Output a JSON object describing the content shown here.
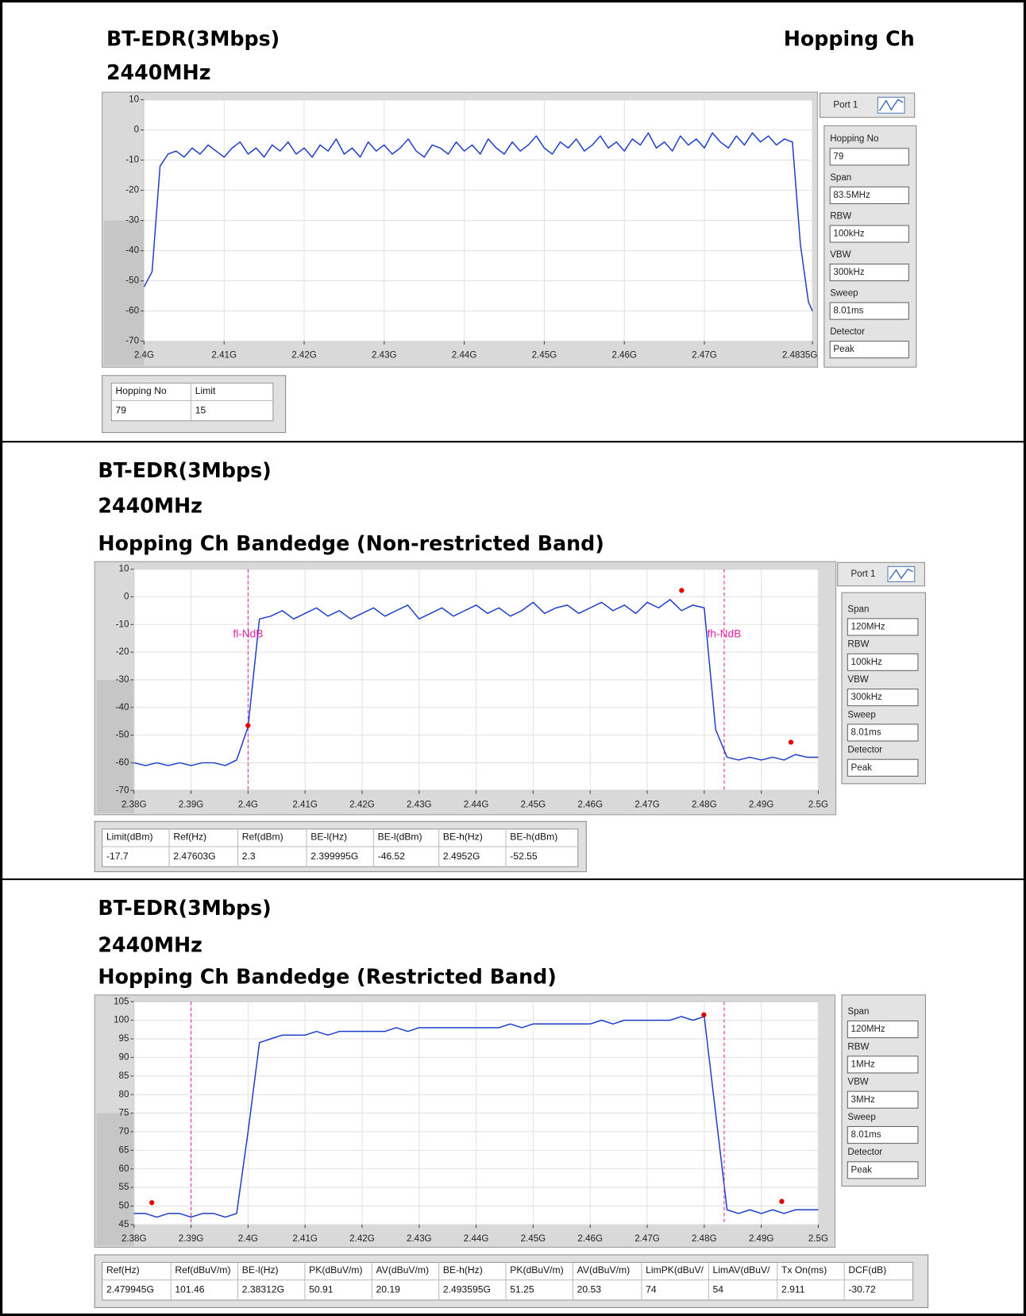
{
  "chart_data": [
    {
      "type": "line",
      "title_lines": [
        "BT-EDR(3Mbps)",
        "2440MHz",
        "Hopping Ch"
      ],
      "xlim": [
        2.4,
        2.4835
      ],
      "ylim": [
        -70,
        10
      ],
      "xticks": [
        {
          "value": 2.4,
          "label": "2.4G"
        },
        {
          "value": 2.41,
          "label": "2.41G"
        },
        {
          "value": 2.42,
          "label": "2.42G"
        },
        {
          "value": 2.43,
          "label": "2.43G"
        },
        {
          "value": 2.44,
          "label": "2.44G"
        },
        {
          "value": 2.45,
          "label": "2.45G"
        },
        {
          "value": 2.46,
          "label": "2.46G"
        },
        {
          "value": 2.47,
          "label": "2.47G"
        },
        {
          "value": 2.4835,
          "label": "2.4835G"
        }
      ],
      "yticks": [
        -70,
        -60,
        -50,
        -40,
        -30,
        -20,
        -10,
        0,
        10
      ],
      "grid": true,
      "x": [
        2.4,
        2.401,
        2.402,
        2.403,
        2.404,
        2.405,
        2.406,
        2.407,
        2.408,
        2.409,
        2.41,
        2.411,
        2.412,
        2.413,
        2.414,
        2.415,
        2.416,
        2.417,
        2.418,
        2.419,
        2.42,
        2.421,
        2.422,
        2.423,
        2.424,
        2.425,
        2.426,
        2.427,
        2.428,
        2.429,
        2.43,
        2.431,
        2.432,
        2.433,
        2.434,
        2.435,
        2.436,
        2.437,
        2.438,
        2.439,
        2.44,
        2.441,
        2.442,
        2.443,
        2.444,
        2.445,
        2.446,
        2.447,
        2.448,
        2.449,
        2.45,
        2.451,
        2.452,
        2.453,
        2.454,
        2.455,
        2.456,
        2.457,
        2.458,
        2.459,
        2.46,
        2.461,
        2.462,
        2.463,
        2.464,
        2.465,
        2.466,
        2.467,
        2.468,
        2.469,
        2.47,
        2.471,
        2.472,
        2.473,
        2.474,
        2.475,
        2.476,
        2.477,
        2.478,
        2.479,
        2.48,
        2.481,
        2.482,
        2.483,
        2.4835
      ],
      "series": [
        {
          "color": "#1a3cc8",
          "values": [
            -52,
            -47,
            -12,
            -8,
            -7,
            -9,
            -6,
            -8,
            -5,
            -7,
            -9,
            -6,
            -4,
            -8,
            -6,
            -9,
            -5,
            -7,
            -4,
            -8,
            -6,
            -9,
            -5,
            -7,
            -3,
            -8,
            -6,
            -9,
            -4,
            -7,
            -5,
            -8,
            -6,
            -3,
            -7,
            -9,
            -5,
            -6,
            -8,
            -4,
            -7,
            -5,
            -8,
            -3,
            -6,
            -8,
            -4,
            -7,
            -5,
            -2,
            -6,
            -8,
            -4,
            -6,
            -3,
            -7,
            -5,
            -2,
            -6,
            -4,
            -7,
            -3,
            -5,
            -1,
            -6,
            -4,
            -7,
            -2,
            -5,
            -3,
            -6,
            -1,
            -4,
            -6,
            -2,
            -5,
            -1,
            -4,
            -2,
            -5,
            -3,
            -4,
            -38,
            -57,
            -60
          ]
        }
      ],
      "markers": [],
      "limit_lines": [],
      "port": "Port 1",
      "settings": [
        {
          "label": "Hopping No",
          "value": "79"
        },
        {
          "label": "Span",
          "value": "83.5MHz"
        },
        {
          "label": "RBW",
          "value": "100kHz"
        },
        {
          "label": "VBW",
          "value": "300kHz"
        },
        {
          "label": "Sweep",
          "value": "8.01ms"
        },
        {
          "label": "Detector",
          "value": "Peak"
        }
      ],
      "table": {
        "header": [
          "Hopping No",
          "Limit"
        ],
        "row": [
          "79",
          "15"
        ]
      }
    },
    {
      "type": "line",
      "title_lines": [
        "BT-EDR(3Mbps)",
        "2440MHz",
        "Hopping Ch Bandedge (Non-restricted Band)"
      ],
      "xlim": [
        2.38,
        2.5
      ],
      "ylim": [
        -70,
        10
      ],
      "xticks": [
        {
          "value": 2.38,
          "label": "2.38G"
        },
        {
          "value": 2.39,
          "label": "2.39G"
        },
        {
          "value": 2.4,
          "label": "2.4G"
        },
        {
          "value": 2.41,
          "label": "2.41G"
        },
        {
          "value": 2.42,
          "label": "2.42G"
        },
        {
          "value": 2.43,
          "label": "2.43G"
        },
        {
          "value": 2.44,
          "label": "2.44G"
        },
        {
          "value": 2.45,
          "label": "2.45G"
        },
        {
          "value": 2.46,
          "label": "2.46G"
        },
        {
          "value": 2.47,
          "label": "2.47G"
        },
        {
          "value": 2.48,
          "label": "2.48G"
        },
        {
          "value": 2.49,
          "label": "2.49G"
        },
        {
          "value": 2.5,
          "label": "2.5G"
        }
      ],
      "yticks": [
        -70,
        -60,
        -50,
        -40,
        -30,
        -20,
        -10,
        0,
        10
      ],
      "grid": true,
      "x": [
        2.38,
        2.382,
        2.384,
        2.386,
        2.388,
        2.39,
        2.392,
        2.394,
        2.396,
        2.398,
        2.4,
        2.402,
        2.404,
        2.406,
        2.408,
        2.41,
        2.412,
        2.414,
        2.416,
        2.418,
        2.42,
        2.422,
        2.424,
        2.426,
        2.428,
        2.43,
        2.432,
        2.434,
        2.436,
        2.438,
        2.44,
        2.442,
        2.444,
        2.446,
        2.448,
        2.45,
        2.452,
        2.454,
        2.456,
        2.458,
        2.46,
        2.462,
        2.464,
        2.466,
        2.468,
        2.47,
        2.472,
        2.474,
        2.476,
        2.478,
        2.48,
        2.482,
        2.484,
        2.486,
        2.488,
        2.49,
        2.492,
        2.494,
        2.496,
        2.498,
        2.5
      ],
      "series": [
        {
          "color": "#1a3cc8",
          "values": [
            -60,
            -61,
            -60,
            -61,
            -60,
            -61,
            -60,
            -60,
            -61,
            -59,
            -47,
            -8,
            -7,
            -5,
            -8,
            -6,
            -4,
            -7,
            -5,
            -8,
            -6,
            -4,
            -7,
            -5,
            -3,
            -8,
            -6,
            -4,
            -7,
            -5,
            -3,
            -6,
            -4,
            -7,
            -5,
            -2,
            -6,
            -4,
            -3,
            -6,
            -4,
            -2,
            -5,
            -3,
            -6,
            -2,
            -4,
            -1,
            -5,
            -3,
            -4,
            -48,
            -58,
            -59,
            -58,
            -59,
            -58,
            -59,
            -57,
            -58,
            -58
          ]
        }
      ],
      "markers": [
        {
          "x": 2.399995,
          "y": -46.52
        },
        {
          "x": 2.47603,
          "y": 2.3
        },
        {
          "x": 2.4952,
          "y": -52.55
        }
      ],
      "limit_lines": [
        {
          "x": 2.4,
          "label": "fl-NdB"
        },
        {
          "x": 2.4835,
          "label": "fh-NdB"
        }
      ],
      "port": "Port 1",
      "settings": [
        {
          "label": "Span",
          "value": "120MHz"
        },
        {
          "label": "RBW",
          "value": "100kHz"
        },
        {
          "label": "VBW",
          "value": "300kHz"
        },
        {
          "label": "Sweep",
          "value": "8.01ms"
        },
        {
          "label": "Detector",
          "value": "Peak"
        }
      ],
      "table": {
        "header": [
          "Limit(dBm)",
          "Ref(Hz)",
          "Ref(dBm)",
          "BE-l(Hz)",
          "BE-l(dBm)",
          "BE-h(Hz)",
          "BE-h(dBm)"
        ],
        "row": [
          "-17.7",
          "2.47603G",
          "2.3",
          "2.399995G",
          "-46.52",
          "2.4952G",
          "-52.55"
        ]
      }
    },
    {
      "type": "line",
      "title_lines": [
        "BT-EDR(3Mbps)",
        "2440MHz",
        "Hopping Ch Bandedge (Restricted Band)"
      ],
      "xlim": [
        2.38,
        2.5
      ],
      "ylim": [
        45,
        105
      ],
      "xticks": [
        {
          "value": 2.38,
          "label": "2.38G"
        },
        {
          "value": 2.39,
          "label": "2.39G"
        },
        {
          "value": 2.4,
          "label": "2.4G"
        },
        {
          "value": 2.41,
          "label": "2.41G"
        },
        {
          "value": 2.42,
          "label": "2.42G"
        },
        {
          "value": 2.43,
          "label": "2.43G"
        },
        {
          "value": 2.44,
          "label": "2.44G"
        },
        {
          "value": 2.45,
          "label": "2.45G"
        },
        {
          "value": 2.46,
          "label": "2.46G"
        },
        {
          "value": 2.47,
          "label": "2.47G"
        },
        {
          "value": 2.48,
          "label": "2.48G"
        },
        {
          "value": 2.49,
          "label": "2.49G"
        },
        {
          "value": 2.5,
          "label": "2.5G"
        }
      ],
      "yticks": [
        45,
        50,
        55,
        60,
        65,
        70,
        75,
        80,
        85,
        90,
        95,
        100,
        105
      ],
      "grid": true,
      "x": [
        2.38,
        2.382,
        2.384,
        2.386,
        2.388,
        2.39,
        2.392,
        2.394,
        2.396,
        2.398,
        2.4,
        2.402,
        2.404,
        2.406,
        2.408,
        2.41,
        2.412,
        2.414,
        2.416,
        2.418,
        2.42,
        2.422,
        2.424,
        2.426,
        2.428,
        2.43,
        2.432,
        2.434,
        2.436,
        2.438,
        2.44,
        2.442,
        2.444,
        2.446,
        2.448,
        2.45,
        2.452,
        2.454,
        2.456,
        2.458,
        2.46,
        2.462,
        2.464,
        2.466,
        2.468,
        2.47,
        2.472,
        2.474,
        2.476,
        2.478,
        2.48,
        2.482,
        2.484,
        2.486,
        2.488,
        2.49,
        2.492,
        2.494,
        2.496,
        2.498,
        2.5
      ],
      "series": [
        {
          "color": "#1a3cc8",
          "values": [
            48,
            48,
            47,
            48,
            48,
            47,
            48,
            48,
            47,
            48,
            70,
            94,
            95,
            96,
            96,
            96,
            97,
            96,
            97,
            97,
            97,
            97,
            97,
            98,
            97,
            98,
            98,
            98,
            98,
            98,
            98,
            98,
            98,
            99,
            98,
            99,
            99,
            99,
            99,
            99,
            99,
            100,
            99,
            100,
            100,
            100,
            100,
            100,
            101,
            100,
            101,
            75,
            49,
            48,
            49,
            48,
            49,
            48,
            49,
            49,
            49
          ]
        }
      ],
      "markers": [
        {
          "x": 2.38312,
          "y": 50.91
        },
        {
          "x": 2.479945,
          "y": 101.46
        },
        {
          "x": 2.493595,
          "y": 51.25
        }
      ],
      "limit_lines": [
        {
          "x": 2.39
        },
        {
          "x": 2.4835
        }
      ],
      "settings": [
        {
          "label": "Span",
          "value": "120MHz"
        },
        {
          "label": "RBW",
          "value": "1MHz"
        },
        {
          "label": "VBW",
          "value": "3MHz"
        },
        {
          "label": "Sweep",
          "value": "8.01ms"
        },
        {
          "label": "Detector",
          "value": "Peak"
        }
      ],
      "table": {
        "header": [
          "Ref(Hz)",
          "Ref(dBuV/m)",
          "BE-l(Hz)",
          "PK(dBuV/m)",
          "AV(dBuV/m)",
          "BE-h(Hz)",
          "PK(dBuV/m)",
          "AV(dBuV/m)",
          "LimPK(dBuV/",
          "LimAV(dBuV/",
          "Tx On(ms)",
          "DCF(dB)"
        ],
        "row": [
          "2.479945G",
          "101.46",
          "2.38312G",
          "50.91",
          "20.19",
          "2.493595G",
          "51.25",
          "20.53",
          "74",
          "54",
          "2.911",
          "-30.72"
        ]
      }
    }
  ]
}
